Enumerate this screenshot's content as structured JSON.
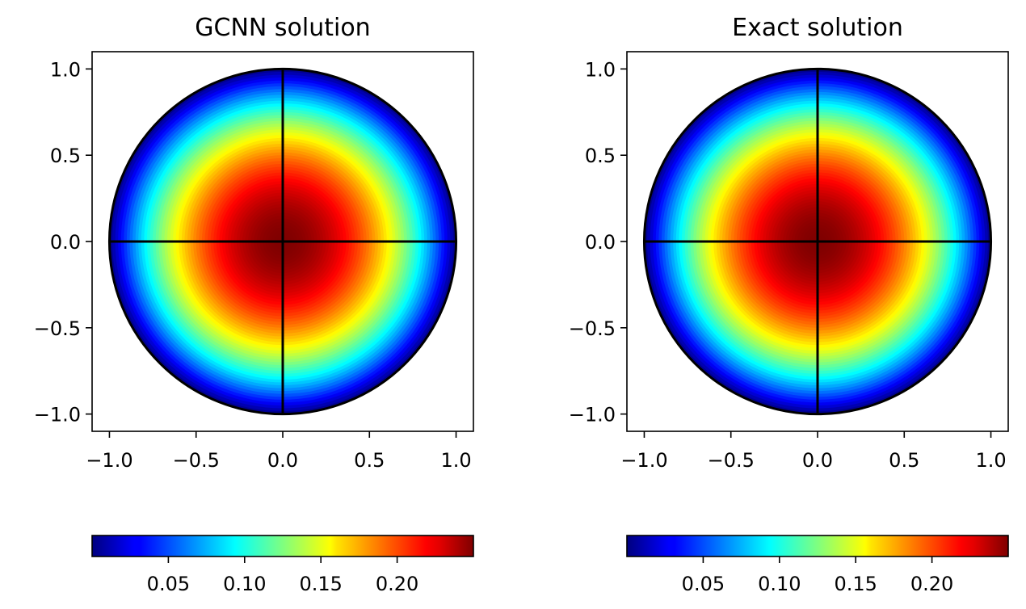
{
  "chart_data": [
    {
      "type": "heatmap",
      "title": "GCNN solution",
      "xlim": [
        -1.1,
        1.1
      ],
      "ylim": [
        -1.1,
        1.1
      ],
      "xticks": [
        -1.0,
        -0.5,
        0.0,
        0.5,
        1.0
      ],
      "yticks": [
        -1.0,
        -0.5,
        0.0,
        0.5,
        1.0
      ],
      "xtick_labels": [
        "−1.0",
        "−0.5",
        "0.0",
        "0.5",
        "1.0"
      ],
      "ytick_labels": [
        "−1.0",
        "−0.5",
        "0.0",
        "0.5",
        "1.0"
      ],
      "domain": "unit disk",
      "field": "u(x,y) = (1 - x^2 - y^2) / 4",
      "value_range": [
        0.0,
        0.25
      ],
      "colormap": "jet",
      "colorbar": {
        "orientation": "horizontal",
        "ticks": [
          0.05,
          0.1,
          0.15,
          0.2
        ],
        "tick_labels": [
          "0.05",
          "0.10",
          "0.15",
          "0.20"
        ],
        "range": [
          0.0,
          0.25
        ]
      },
      "overlay_lines": [
        "x = 0",
        "y = 0",
        "boundary"
      ],
      "grid": false,
      "legend": false
    },
    {
      "type": "heatmap",
      "title": "Exact solution",
      "xlim": [
        -1.1,
        1.1
      ],
      "ylim": [
        -1.1,
        1.1
      ],
      "xticks": [
        -1.0,
        -0.5,
        0.0,
        0.5,
        1.0
      ],
      "yticks": [
        -1.0,
        -0.5,
        0.0,
        0.5,
        1.0
      ],
      "xtick_labels": [
        "−1.0",
        "−0.5",
        "0.0",
        "0.5",
        "1.0"
      ],
      "ytick_labels": [
        "−1.0",
        "−0.5",
        "0.0",
        "0.5",
        "1.0"
      ],
      "domain": "unit disk",
      "field": "u(x,y) = (1 - x^2 - y^2) / 4",
      "value_range": [
        0.0,
        0.25
      ],
      "colormap": "jet",
      "colorbar": {
        "orientation": "horizontal",
        "ticks": [
          0.05,
          0.1,
          0.15,
          0.2
        ],
        "tick_labels": [
          "0.05",
          "0.10",
          "0.15",
          "0.20"
        ],
        "range": [
          0.0,
          0.25
        ]
      },
      "overlay_lines": [
        "x = 0",
        "y = 0",
        "boundary"
      ],
      "grid": false,
      "legend": false
    }
  ]
}
